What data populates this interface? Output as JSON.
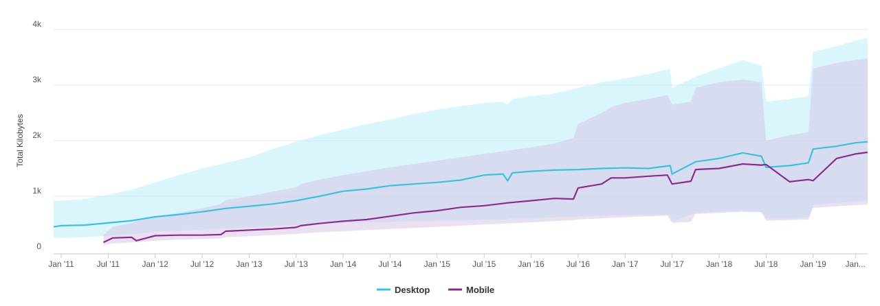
{
  "chart_data": {
    "type": "area",
    "ylabel": "Total Kilobytes",
    "ylim": [
      0,
      4000
    ],
    "y_ticks": [
      {
        "value": 0,
        "label": "0"
      },
      {
        "value": 1000,
        "label": "1k"
      },
      {
        "value": 2000,
        "label": "2k"
      },
      {
        "value": 3000,
        "label": "3k"
      },
      {
        "value": 4000,
        "label": "4k"
      }
    ],
    "x_range": [
      2010.92,
      2019.58
    ],
    "x_ticks": [
      {
        "value": 2011.0,
        "label": "Jan '11"
      },
      {
        "value": 2011.5,
        "label": "Jul '11"
      },
      {
        "value": 2012.0,
        "label": "Jan '12"
      },
      {
        "value": 2012.5,
        "label": "Jul '12"
      },
      {
        "value": 2013.0,
        "label": "Jan '13"
      },
      {
        "value": 2013.5,
        "label": "Jul '13"
      },
      {
        "value": 2014.0,
        "label": "Jan '14"
      },
      {
        "value": 2014.5,
        "label": "Jul '14"
      },
      {
        "value": 2015.0,
        "label": "Jan '15"
      },
      {
        "value": 2015.5,
        "label": "Jul '15"
      },
      {
        "value": 2016.0,
        "label": "Jan '16"
      },
      {
        "value": 2016.5,
        "label": "Jul '16"
      },
      {
        "value": 2017.0,
        "label": "Jan '17"
      },
      {
        "value": 2017.5,
        "label": "Jul '17"
      },
      {
        "value": 2018.0,
        "label": "Jan '18"
      },
      {
        "value": 2018.5,
        "label": "Jul '18"
      },
      {
        "value": 2019.0,
        "label": "Jan '19"
      },
      {
        "value": 2019.45,
        "label": "Jan..."
      }
    ],
    "grid": true,
    "legend_position": "bottom-center",
    "series": [
      {
        "name": "Desktop",
        "color": "#3cc0e0",
        "band_color": "#c6effb",
        "x": [
          2010.92,
          2011.0,
          2011.25,
          2011.5,
          2011.75,
          2012.0,
          2012.25,
          2012.5,
          2012.75,
          2013.0,
          2013.25,
          2013.5,
          2013.75,
          2014.0,
          2014.25,
          2014.5,
          2014.75,
          2015.0,
          2015.25,
          2015.5,
          2015.7,
          2015.75,
          2015.8,
          2016.0,
          2016.25,
          2016.5,
          2016.75,
          2017.0,
          2017.25,
          2017.48,
          2017.5,
          2017.75,
          2018.0,
          2018.25,
          2018.45,
          2018.5,
          2018.75,
          2018.95,
          2019.0,
          2019.25,
          2019.45,
          2019.58
        ],
        "value": [
          450,
          470,
          480,
          520,
          560,
          630,
          670,
          720,
          780,
          820,
          860,
          920,
          1000,
          1090,
          1130,
          1190,
          1220,
          1250,
          1290,
          1380,
          1400,
          1280,
          1420,
          1450,
          1470,
          1480,
          1500,
          1510,
          1500,
          1550,
          1400,
          1620,
          1680,
          1780,
          1720,
          1520,
          1550,
          1600,
          1850,
          1900,
          1960,
          1980
        ],
        "low": [
          250,
          250,
          260,
          290,
          320,
          360,
          380,
          400,
          420,
          440,
          460,
          480,
          500,
          520,
          530,
          540,
          550,
          560,
          560,
          580,
          580,
          580,
          600,
          600,
          620,
          640,
          650,
          660,
          660,
          670,
          550,
          700,
          720,
          740,
          720,
          600,
          600,
          620,
          840,
          880,
          900,
          920
        ],
        "high": [
          920,
          920,
          950,
          1030,
          1120,
          1250,
          1380,
          1500,
          1600,
          1700,
          1850,
          1980,
          2100,
          2200,
          2300,
          2380,
          2480,
          2560,
          2620,
          2680,
          2700,
          2650,
          2750,
          2800,
          2850,
          2950,
          3050,
          3120,
          3200,
          3300,
          2950,
          3150,
          3300,
          3450,
          3350,
          2700,
          2750,
          2800,
          3600,
          3700,
          3800,
          3850
        ]
      },
      {
        "name": "Mobile",
        "color": "#8a2b8e",
        "band_color": "#d7c6e8",
        "x": [
          2011.45,
          2011.55,
          2011.75,
          2011.8,
          2012.0,
          2012.25,
          2012.5,
          2012.7,
          2012.75,
          2013.0,
          2013.25,
          2013.5,
          2013.55,
          2013.75,
          2014.0,
          2014.25,
          2014.5,
          2014.75,
          2015.0,
          2015.25,
          2015.5,
          2015.75,
          2016.0,
          2016.25,
          2016.45,
          2016.5,
          2016.75,
          2016.85,
          2017.0,
          2017.25,
          2017.45,
          2017.5,
          2017.7,
          2017.75,
          2018.0,
          2018.25,
          2018.45,
          2018.5,
          2018.75,
          2018.95,
          2019.0,
          2019.25,
          2019.45,
          2019.58
        ],
        "value": [
          170,
          250,
          260,
          200,
          290,
          300,
          300,
          310,
          370,
          390,
          410,
          440,
          470,
          510,
          550,
          580,
          640,
          700,
          740,
          800,
          830,
          880,
          920,
          960,
          950,
          1150,
          1220,
          1330,
          1330,
          1360,
          1380,
          1220,
          1270,
          1480,
          1500,
          1580,
          1560,
          1570,
          1260,
          1300,
          1280,
          1680,
          1760,
          1790
        ],
        "low": [
          120,
          150,
          170,
          170,
          200,
          220,
          230,
          240,
          260,
          280,
          300,
          320,
          330,
          350,
          370,
          390,
          410,
          430,
          450,
          470,
          490,
          510,
          530,
          550,
          570,
          580,
          600,
          610,
          620,
          640,
          650,
          520,
          540,
          680,
          700,
          720,
          710,
          560,
          570,
          580,
          790,
          820,
          840,
          850
        ],
        "high": [
          300,
          450,
          520,
          560,
          620,
          700,
          780,
          860,
          930,
          1000,
          1080,
          1160,
          1220,
          1300,
          1380,
          1450,
          1520,
          1580,
          1640,
          1700,
          1760,
          1820,
          1880,
          1950,
          2050,
          2300,
          2500,
          2600,
          2680,
          2750,
          2820,
          2650,
          2700,
          2950,
          3050,
          3100,
          3050,
          2000,
          2100,
          2150,
          3300,
          3400,
          3450,
          3480
        ]
      }
    ]
  }
}
